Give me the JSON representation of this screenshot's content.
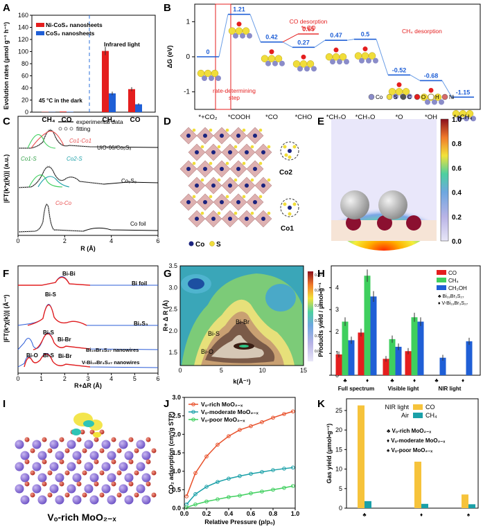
{
  "figure_label": "Multi-panel figure: CO2 photoreduction catalysts",
  "colors": {
    "red": "#e41e1e",
    "blue": "#1f5fd6",
    "green": "#3fcf5e",
    "teal": "#1aa0a8",
    "gold": "#f6c33b",
    "pink": "#e94e4e",
    "darkblue": "#1a237e"
  },
  "chart_data": [
    {
      "id": "A",
      "letter": "A",
      "type": "bar",
      "ylabel": "Evolution rates (μmol g⁻¹ h⁻¹)",
      "ylim": [
        0,
        160
      ],
      "yticks": [
        0,
        20,
        40,
        60,
        80,
        100,
        120,
        140,
        160
      ],
      "categories": [
        "CH4",
        "CO",
        "CH4",
        "CO"
      ],
      "category_labels": [
        "CH₄",
        "CO",
        "CH₄",
        "CO"
      ],
      "series": [
        {
          "name": "Ni-CoS₂ nanosheets",
          "values": [
            0.4,
            1.0,
            101,
            38
          ]
        },
        {
          "name": "CoS₂ nanosheets",
          "values": [
            0.3,
            0.6,
            31,
            13
          ]
        }
      ],
      "annotations": [
        "45 °C in the dark",
        "Infrared light"
      ]
    },
    {
      "id": "B",
      "letter": "B",
      "type": "line",
      "ylabel": "ΔG (eV)",
      "ylim": [
        -1.5,
        1.5
      ],
      "yticks": [
        1,
        0,
        -1
      ],
      "steps": [
        "*+CO₂",
        "*COOH",
        "*CO",
        "*CHO",
        "*CH₂O",
        "*CH₃O",
        "*O",
        "*OH",
        "*+CH₄"
      ],
      "values": [
        0,
        1.21,
        0.42,
        0.27,
        0.47,
        0.5,
        -0.52,
        -0.68,
        -1.15
      ],
      "value_labels": [
        "0",
        "1.21",
        "0.42",
        "0.27",
        "0.47",
        "0.5",
        "-0.52",
        "-0.68",
        "-1.15"
      ],
      "co_branch_label": "0.65",
      "co_branch_value": 0.65,
      "annotations": {
        "rds": "rate-determining step",
        "co_desorption": "CO desorption *+CO",
        "ch4_desorption": "CH₄ desorption"
      },
      "legend": [
        "Co",
        "S",
        "C",
        "O",
        "H",
        "Ni"
      ]
    },
    {
      "id": "C",
      "letter": "C",
      "type": "line",
      "xlabel": "R (Å)",
      "ylabel": "|FT(k³χ(k))| (a.u.)",
      "xlim": [
        0,
        6
      ],
      "xticks": [
        0,
        2,
        4,
        6
      ],
      "legend": [
        "experimental data",
        "fitting"
      ],
      "traces": [
        "UiO-66/Co₉S₈",
        "Co₉S₈",
        "Co foil"
      ],
      "peak_labels": [
        "Co1-Co1",
        "Co1-S",
        "Co2-S",
        "Co-Co"
      ]
    },
    {
      "id": "F",
      "letter": "F",
      "type": "line",
      "xlabel": "R+ΔR (Å)",
      "ylabel": "|FT(k²χ(k))| (Å⁻³)",
      "xlim": [
        0,
        6
      ],
      "xticks": [
        0,
        1,
        2,
        3,
        4,
        5,
        6
      ],
      "traces": [
        "Bi foil",
        "Bi₂S₃",
        "Bi₁₉Br₃S₂₇ nanowires",
        "V-Bi₁₉Br₃S₂₇ nanowires"
      ],
      "peak_labels": [
        "Bi-Bi",
        "Bi-S",
        "Bi-S",
        "Bi-Br",
        "Bi-O",
        "Bi-S",
        "Bi-Br"
      ]
    },
    {
      "id": "G",
      "letter": "G",
      "type": "heatmap",
      "xlabel": "k(Å⁻¹)",
      "ylabel": "R+ Δ R (Å)",
      "xlim": [
        0,
        15
      ],
      "ylim": [
        1.2,
        3.5
      ],
      "xticks": [
        0,
        5,
        10,
        15
      ],
      "yticks": [
        1.5,
        2.0,
        2.5,
        3.0,
        3.5
      ],
      "colorbar_ticks": [
        0.3,
        0.25,
        0.2,
        0.15,
        0.1,
        0.05
      ],
      "region_labels": [
        "Bi-Br",
        "Bi-S",
        "Bi-O"
      ]
    },
    {
      "id": "H",
      "letter": "H",
      "type": "bar",
      "ylabel": "Products yield / μmol•g⁻¹",
      "ylim": [
        0,
        5
      ],
      "yticks": [
        0,
        1,
        2,
        3,
        4
      ],
      "groups": [
        "Full spectrum",
        "Visible light",
        "NIR light"
      ],
      "subcategories": [
        "Bi19Br3S27",
        "V-Bi19Br3S27"
      ],
      "series": [
        {
          "name": "CO",
          "values": [
            0.95,
            1.95,
            0.75,
            1.1,
            0,
            0
          ]
        },
        {
          "name": "CH₄",
          "values": [
            2.45,
            4.55,
            1.65,
            2.65,
            0,
            0
          ]
        },
        {
          "name": "CH₃OH",
          "values": [
            1.6,
            3.6,
            1.3,
            2.45,
            0.8,
            1.55
          ]
        }
      ],
      "legend_markers": [
        "Bi₁₉Br₃S₂₇",
        "V-Bi₁₉Br₃S₂₇"
      ]
    },
    {
      "id": "J",
      "letter": "J",
      "type": "scatter",
      "xlabel": "Relative Pressure (p/p₀)",
      "ylabel": "CO₂ adsorption (cm³/g STP)",
      "xlim": [
        0,
        1.0
      ],
      "ylim": [
        0,
        3.0
      ],
      "xticks": [
        0.0,
        0.2,
        0.4,
        0.6,
        0.8,
        1.0
      ],
      "yticks": [
        0.0,
        0.5,
        1.0,
        1.5,
        2.0,
        2.5,
        3.0
      ],
      "series": [
        {
          "name": "Vₒ-rich MoO₂₋ₓ",
          "x": [
            0.02,
            0.1,
            0.2,
            0.3,
            0.4,
            0.5,
            0.6,
            0.7,
            0.8,
            0.9,
            0.98
          ],
          "y": [
            0.32,
            0.95,
            1.4,
            1.72,
            1.95,
            2.12,
            2.22,
            2.33,
            2.45,
            2.55,
            2.62
          ]
        },
        {
          "name": "Vₒ-moderate MoO₂₋ₓ",
          "x": [
            0.02,
            0.1,
            0.2,
            0.3,
            0.4,
            0.5,
            0.6,
            0.7,
            0.8,
            0.9,
            0.98
          ],
          "y": [
            0.1,
            0.38,
            0.58,
            0.71,
            0.8,
            0.87,
            0.93,
            0.98,
            1.03,
            1.07,
            1.1
          ]
        },
        {
          "name": "Vₒ-poor MoO₂₋ₓ",
          "x": [
            0.02,
            0.1,
            0.2,
            0.3,
            0.4,
            0.5,
            0.6,
            0.7,
            0.8,
            0.9,
            0.98
          ],
          "y": [
            0.02,
            0.1,
            0.18,
            0.24,
            0.3,
            0.34,
            0.4,
            0.45,
            0.5,
            0.55,
            0.6
          ]
        }
      ]
    },
    {
      "id": "K",
      "letter": "K",
      "type": "bar",
      "ylabel": "Gas yield (μmol•g⁻¹)",
      "ylim": [
        0,
        28
      ],
      "yticks": [
        0,
        5,
        10,
        15,
        20,
        25
      ],
      "categories": [
        "Vo-rich",
        "Vo-moderate",
        "Vo-poor"
      ],
      "series": [
        {
          "name": "CO",
          "values": [
            26.3,
            11.9,
            3.5
          ]
        },
        {
          "name": "CH₄",
          "values": [
            1.8,
            1.1,
            1.0
          ]
        }
      ],
      "legend_title": [
        "NIR light",
        "Air"
      ],
      "marker_labels": [
        "Vₒ-rich MoO₂₋ₓ",
        "Vₒ-moderate MoO₂₋ₓ",
        "Vₒ-poor MoO₂₋ₓ"
      ]
    }
  ],
  "panels": {
    "D": {
      "letter": "D",
      "legend": [
        "Co",
        "S"
      ],
      "site_labels": [
        "Co2",
        "Co1"
      ]
    },
    "E": {
      "letter": "E",
      "colorbar_ticks": [
        "1.0",
        "0.8",
        "0.6",
        "0.4",
        "0.2",
        "0.0"
      ]
    },
    "I": {
      "letter": "I",
      "caption": "Vₒ-rich MoO₂₋ₓ"
    }
  }
}
